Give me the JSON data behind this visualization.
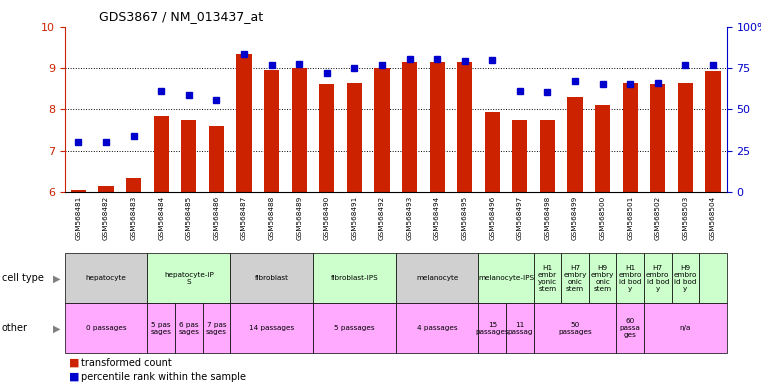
{
  "title": "GDS3867 / NM_013437_at",
  "samples": [
    "GSM568481",
    "GSM568482",
    "GSM568483",
    "GSM568484",
    "GSM568485",
    "GSM568486",
    "GSM568487",
    "GSM568488",
    "GSM568489",
    "GSM568490",
    "GSM568491",
    "GSM568492",
    "GSM568493",
    "GSM568494",
    "GSM568495",
    "GSM568496",
    "GSM568497",
    "GSM568498",
    "GSM568499",
    "GSM568500",
    "GSM568501",
    "GSM568502",
    "GSM568503",
    "GSM568504"
  ],
  "red_values": [
    6.05,
    6.15,
    6.35,
    7.85,
    7.75,
    7.6,
    9.35,
    8.95,
    9.0,
    8.62,
    8.65,
    9.0,
    9.15,
    9.15,
    9.15,
    7.95,
    7.75,
    7.75,
    8.3,
    8.1,
    8.65,
    8.62,
    8.65,
    8.92
  ],
  "blue_values": [
    7.2,
    7.2,
    7.35,
    8.45,
    8.35,
    8.22,
    9.35,
    9.08,
    9.1,
    8.88,
    9.0,
    9.08,
    9.22,
    9.22,
    9.18,
    9.2,
    8.45,
    8.42,
    8.7,
    8.62,
    8.62,
    8.65,
    9.08,
    9.08
  ],
  "ylim_left": [
    6,
    10
  ],
  "ylim_right": [
    0,
    100
  ],
  "yticks_left": [
    6,
    7,
    8,
    9,
    10
  ],
  "yticks_right": [
    0,
    25,
    50,
    75,
    100
  ],
  "ytick_labels_right": [
    "0",
    "25",
    "50",
    "75",
    "100%"
  ],
  "red_color": "#CC2200",
  "blue_color": "#0000CC",
  "bar_bottom": 6.0,
  "cell_type_groups": [
    {
      "label": "hepatocyte",
      "start": 0,
      "end": 2,
      "color": "#d0d0d0"
    },
    {
      "label": "hepatocyte-iP\nS",
      "start": 3,
      "end": 5,
      "color": "#ccffcc"
    },
    {
      "label": "fibroblast",
      "start": 6,
      "end": 8,
      "color": "#d0d0d0"
    },
    {
      "label": "fibroblast-IPS",
      "start": 9,
      "end": 11,
      "color": "#ccffcc"
    },
    {
      "label": "melanocyte",
      "start": 12,
      "end": 14,
      "color": "#d0d0d0"
    },
    {
      "label": "melanocyte-IPS",
      "start": 15,
      "end": 16,
      "color": "#ccffcc"
    },
    {
      "label": "H1\nembr\nyonic\nstem",
      "start": 17,
      "end": 17,
      "color": "#ccffcc"
    },
    {
      "label": "H7\nembry\nonic\nstem",
      "start": 18,
      "end": 18,
      "color": "#ccffcc"
    },
    {
      "label": "H9\nembry\nonic\nstem",
      "start": 19,
      "end": 19,
      "color": "#ccffcc"
    },
    {
      "label": "H1\nembro\nid bod\ny",
      "start": 20,
      "end": 20,
      "color": "#ccffcc"
    },
    {
      "label": "H7\nembro\nid bod\ny",
      "start": 21,
      "end": 21,
      "color": "#ccffcc"
    },
    {
      "label": "H9\nembro\nid bod\ny",
      "start": 22,
      "end": 22,
      "color": "#ccffcc"
    },
    {
      "label": "",
      "start": 23,
      "end": 23,
      "color": "#ccffcc"
    }
  ],
  "other_groups": [
    {
      "label": "0 passages",
      "start": 0,
      "end": 2,
      "color": "#ffaaff"
    },
    {
      "label": "5 pas\nsages",
      "start": 3,
      "end": 3,
      "color": "#ffaaff"
    },
    {
      "label": "6 pas\nsages",
      "start": 4,
      "end": 4,
      "color": "#ffaaff"
    },
    {
      "label": "7 pas\nsages",
      "start": 5,
      "end": 5,
      "color": "#ffaaff"
    },
    {
      "label": "14 passages",
      "start": 6,
      "end": 8,
      "color": "#ffaaff"
    },
    {
      "label": "5 passages",
      "start": 9,
      "end": 11,
      "color": "#ffaaff"
    },
    {
      "label": "4 passages",
      "start": 12,
      "end": 14,
      "color": "#ffaaff"
    },
    {
      "label": "15\npassages",
      "start": 15,
      "end": 15,
      "color": "#ffaaff"
    },
    {
      "label": "11\npassag",
      "start": 16,
      "end": 16,
      "color": "#ffaaff"
    },
    {
      "label": "50\npassages",
      "start": 17,
      "end": 19,
      "color": "#ffaaff"
    },
    {
      "label": "60\npassa\nges",
      "start": 20,
      "end": 20,
      "color": "#ffaaff"
    },
    {
      "label": "n/a",
      "start": 21,
      "end": 23,
      "color": "#ffaaff"
    }
  ],
  "bg_color": "#ffffff"
}
